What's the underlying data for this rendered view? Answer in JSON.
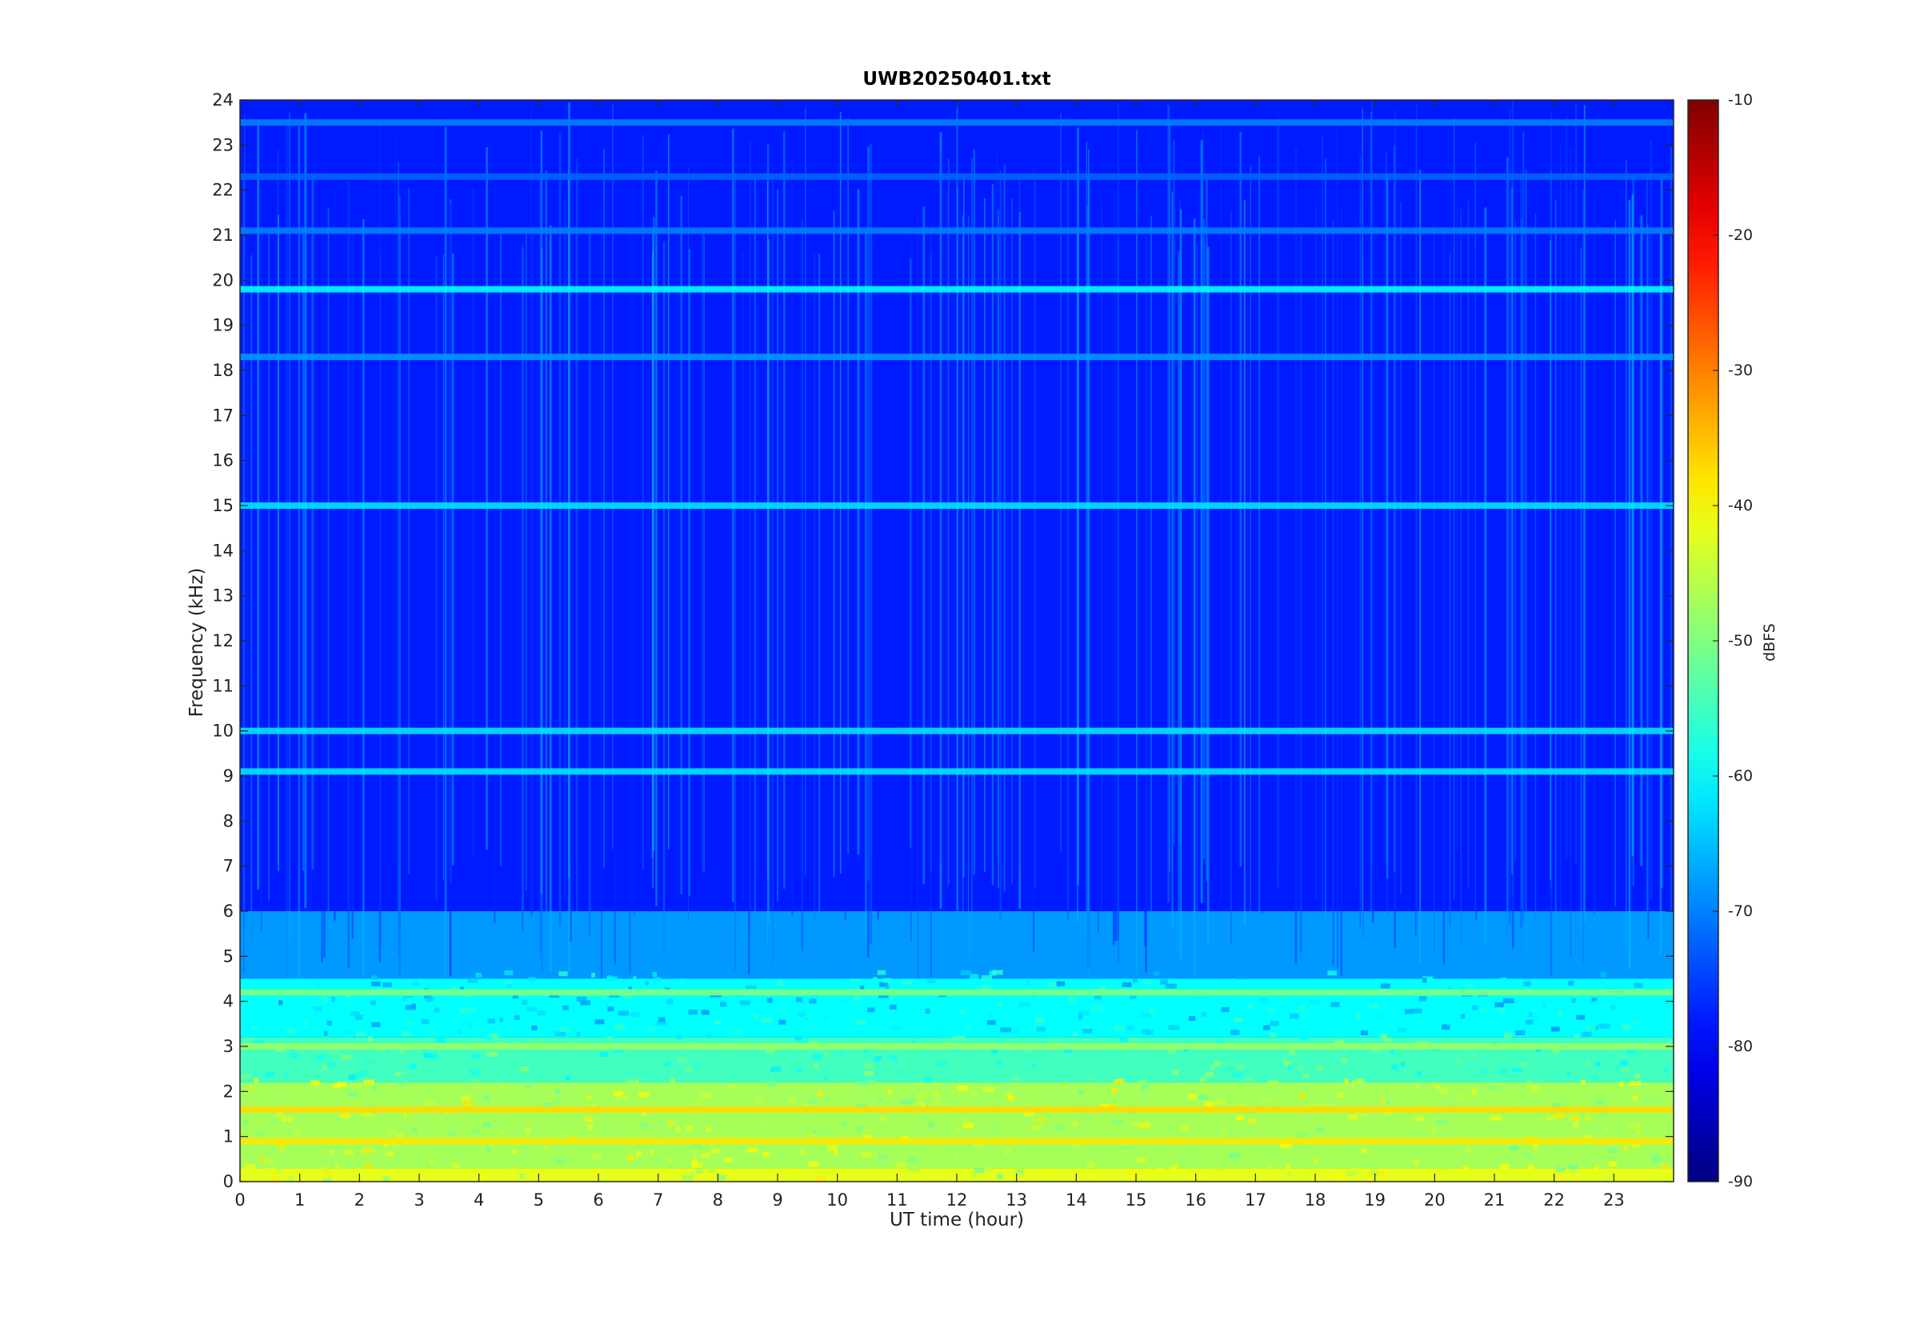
{
  "chart_data": {
    "type": "heatmap",
    "title": "UWB20250401.txt",
    "xlabel": "UT time (hour)",
    "ylabel": "Frequency (kHz)",
    "xlim": [
      0,
      24
    ],
    "ylim": [
      0,
      24
    ],
    "x_ticks": [
      "0",
      "1",
      "2",
      "3",
      "4",
      "5",
      "6",
      "7",
      "8",
      "9",
      "10",
      "11",
      "12",
      "13",
      "14",
      "15",
      "16",
      "17",
      "18",
      "19",
      "20",
      "21",
      "22",
      "23"
    ],
    "y_ticks": [
      "0",
      "1",
      "2",
      "3",
      "4",
      "5",
      "6",
      "7",
      "8",
      "9",
      "10",
      "11",
      "12",
      "13",
      "14",
      "15",
      "16",
      "17",
      "18",
      "19",
      "20",
      "21",
      "22",
      "23",
      "24"
    ],
    "colormap": "jet",
    "colorbar": {
      "label": "dBFS",
      "clim": [
        -90,
        -10
      ],
      "ticks": [
        "-10",
        "-20",
        "-30",
        "-40",
        "-50",
        "-60",
        "-70",
        "-80",
        "-90"
      ]
    },
    "grid": false,
    "background_level_dbfs": [
      {
        "freq_khz": [
          0,
          0.3
        ],
        "level": -42
      },
      {
        "freq_khz": [
          0.3,
          2.2
        ],
        "level": -47
      },
      {
        "freq_khz": [
          2.2,
          3.2
        ],
        "level": -55
      },
      {
        "freq_khz": [
          3.2,
          4.5
        ],
        "level": -60
      },
      {
        "freq_khz": [
          4.5,
          6.0
        ],
        "level": -68
      },
      {
        "freq_khz": [
          6.0,
          24.0
        ],
        "level": -78
      }
    ],
    "narrowband_lines": [
      {
        "freq_khz": 1.6,
        "level": -37,
        "label": ""
      },
      {
        "freq_khz": 0.9,
        "level": -38,
        "label": ""
      },
      {
        "freq_khz": 3.0,
        "level": -48,
        "label": ""
      },
      {
        "freq_khz": 4.2,
        "level": -50,
        "label": ""
      },
      {
        "freq_khz": 9.1,
        "level": -62,
        "label": ""
      },
      {
        "freq_khz": 10.0,
        "level": -62,
        "label": ""
      },
      {
        "freq_khz": 15.0,
        "level": -62,
        "label": ""
      },
      {
        "freq_khz": 18.3,
        "level": -68,
        "label": ""
      },
      {
        "freq_khz": 19.8,
        "level": -60,
        "label": ""
      },
      {
        "freq_khz": 21.1,
        "level": -70,
        "label": ""
      },
      {
        "freq_khz": 22.3,
        "level": -72,
        "label": ""
      },
      {
        "freq_khz": 23.5,
        "level": -70,
        "label": ""
      }
    ],
    "colors": {
      "jet": [
        "#00008f",
        "#0000ff",
        "#00ffff",
        "#ffff00",
        "#ff0000",
        "#800000"
      ]
    }
  }
}
